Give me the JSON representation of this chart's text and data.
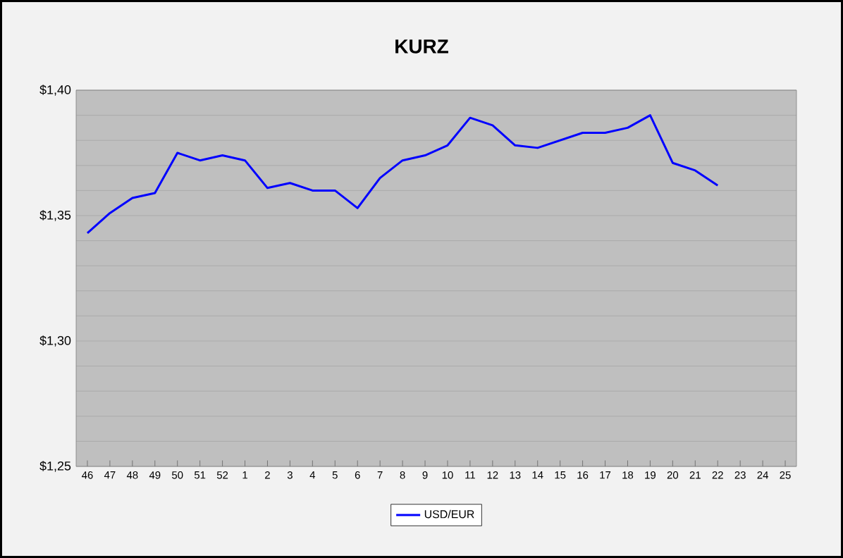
{
  "chart_data": {
    "type": "line",
    "title": "KURZ",
    "categories": [
      "46",
      "47",
      "48",
      "49",
      "50",
      "51",
      "52",
      "1",
      "2",
      "3",
      "4",
      "5",
      "6",
      "7",
      "8",
      "9",
      "10",
      "11",
      "12",
      "13",
      "14",
      "15",
      "16",
      "17",
      "18",
      "19",
      "20",
      "21",
      "22",
      "23",
      "24",
      "25"
    ],
    "series": [
      {
        "name": "USD/EUR",
        "color": "#0000ff",
        "values": [
          1.343,
          1.351,
          1.357,
          1.359,
          1.375,
          1.372,
          1.374,
          1.372,
          1.361,
          1.363,
          1.36,
          1.36,
          1.353,
          1.365,
          1.372,
          1.374,
          1.378,
          1.389,
          1.386,
          1.378,
          1.377,
          1.38,
          1.383,
          1.383,
          1.385,
          1.39,
          1.371,
          1.368,
          1.362,
          null,
          null,
          null
        ]
      }
    ],
    "ylim": [
      1.25,
      1.4
    ],
    "yticks": [
      {
        "value": 1.25,
        "label": "$1,25"
      },
      {
        "value": 1.26,
        "label": null
      },
      {
        "value": 1.27,
        "label": null
      },
      {
        "value": 1.28,
        "label": null
      },
      {
        "value": 1.29,
        "label": null
      },
      {
        "value": 1.3,
        "label": "$1,30"
      },
      {
        "value": 1.31,
        "label": null
      },
      {
        "value": 1.32,
        "label": null
      },
      {
        "value": 1.33,
        "label": null
      },
      {
        "value": 1.34,
        "label": null
      },
      {
        "value": 1.35,
        "label": "$1,35"
      },
      {
        "value": 1.36,
        "label": null
      },
      {
        "value": 1.37,
        "label": null
      },
      {
        "value": 1.38,
        "label": null
      },
      {
        "value": 1.39,
        "label": null
      },
      {
        "value": 1.4,
        "label": "$1,40"
      }
    ],
    "grid": "y",
    "legend": "bottom",
    "marker": "none",
    "line_style": "solid"
  }
}
